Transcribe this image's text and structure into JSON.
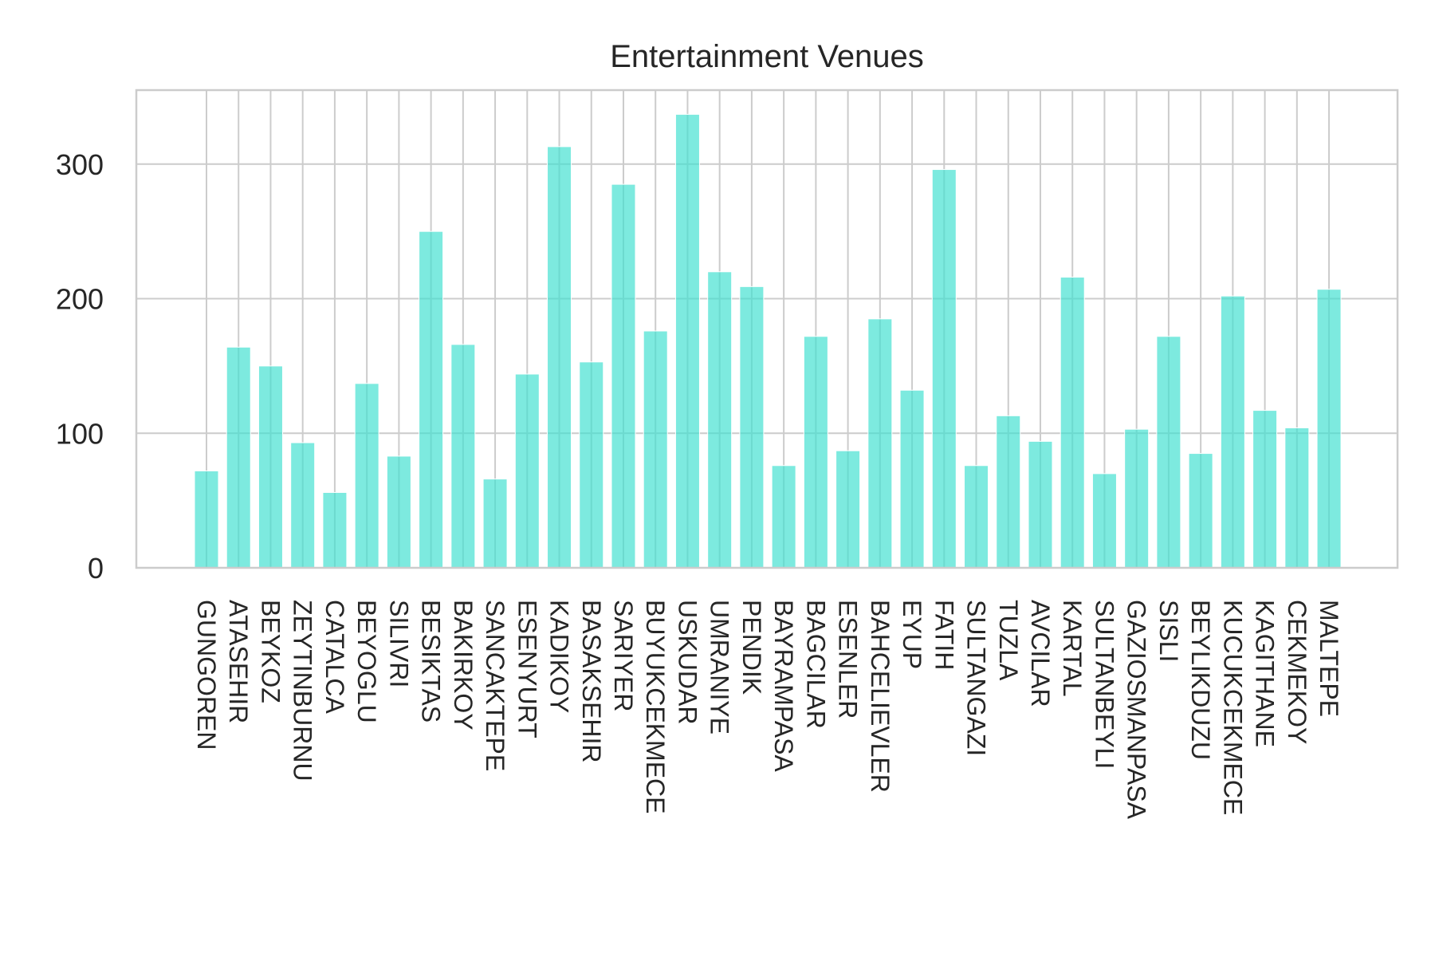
{
  "chart_data": {
    "type": "bar",
    "title": "Entertainment Venues",
    "xlabel": "",
    "ylabel": "",
    "categories": [
      "GUNGOREN",
      "ATASEHIR",
      "BEYKOZ",
      "ZEYTINBURNU",
      "CATALCA",
      "BEYOGLU",
      "SILIVRI",
      "BESIKTAS",
      "BAKIRKOY",
      "SANCAKTEPE",
      "ESENYURT",
      "KADIKOY",
      "BASAKSEHIR",
      "SARIYER",
      "BUYUKCEKMECE",
      "USKUDAR",
      "UMRANIYE",
      "PENDIK",
      "BAYRAMPASA",
      "BAGCILAR",
      "ESENLER",
      "BAHCELIEVLER",
      "EYUP",
      "FATIH",
      "SULTANGAZI",
      "TUZLA",
      "AVCILAR",
      "KARTAL",
      "SULTANBEYLI",
      "GAZIOSMANPASA",
      "SISLI",
      "BEYLIKDUZU",
      "KUCUKCEKMECE",
      "KAGITHANE",
      "CEKMEKOY",
      "MALTEPE"
    ],
    "values": [
      72,
      164,
      150,
      93,
      56,
      137,
      83,
      250,
      166,
      66,
      144,
      313,
      153,
      285,
      176,
      337,
      220,
      209,
      76,
      172,
      87,
      185,
      132,
      296,
      76,
      113,
      94,
      216,
      70,
      103,
      172,
      85,
      202,
      117,
      104,
      207
    ],
    "yticks": [
      "0",
      "100",
      "200",
      "300"
    ],
    "ylim": [
      0,
      355
    ],
    "grid": true,
    "legend": "none",
    "bar_color": "#40E0D0"
  }
}
